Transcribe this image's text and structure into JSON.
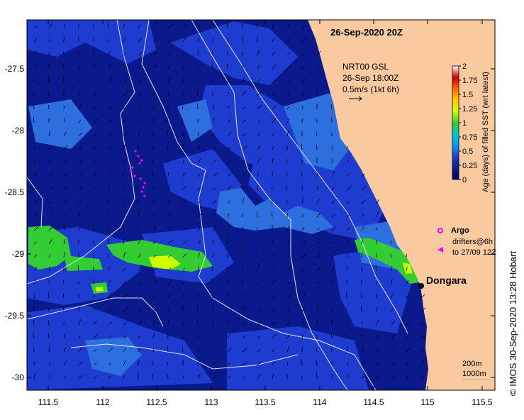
{
  "map": {
    "date": "26-Sep-2020 20Z",
    "gsl": {
      "line1": "NRT00 GSL",
      "line2": "26-Sep 18:00Z",
      "line3": "0.5m/s (1kt 6h)"
    },
    "colorbar": {
      "title": "Age (days) of filled SST (wrt latest)",
      "ticks": [
        "2",
        "1.75",
        "1.5",
        "1.25",
        "1",
        "0.75",
        "0.5",
        "0.25",
        "0"
      ],
      "stops": [
        "#ffffff",
        "#cc0000",
        "#ff6600",
        "#ffcc00",
        "#ccff00",
        "#33cc33",
        "#00cccc",
        "#0099ff",
        "#1e3ccf",
        "#0a1a8c",
        "#000066"
      ]
    },
    "legend": {
      "argo": "Argo",
      "drifters_line1": "drifters@6h",
      "drifters_line2": "to 27/09 12Z"
    },
    "place": "Dongara",
    "isobaths": {
      "line1": "200m",
      "line2": "1000m"
    },
    "lat_ticks": [
      "-27.5",
      "-28",
      "-28.5",
      "-29",
      "-29.5",
      "-30"
    ],
    "lon_ticks": [
      "111.5",
      "112",
      "112.5",
      "113",
      "113.5",
      "114",
      "114.5",
      "115",
      "115.5"
    ],
    "credit": "©  IMOS 30-Sep-2020 13:28 Hobart",
    "colors": {
      "land": "#f9c9a0",
      "ocean_deep": "#0a1a8c",
      "ocean_mid": "#1e3ccf",
      "ocean_light": "#2e6fe0",
      "age_green": "#33cc33",
      "age_yellow": "#ccff00",
      "argo_magenta": "#ff00ff"
    }
  }
}
